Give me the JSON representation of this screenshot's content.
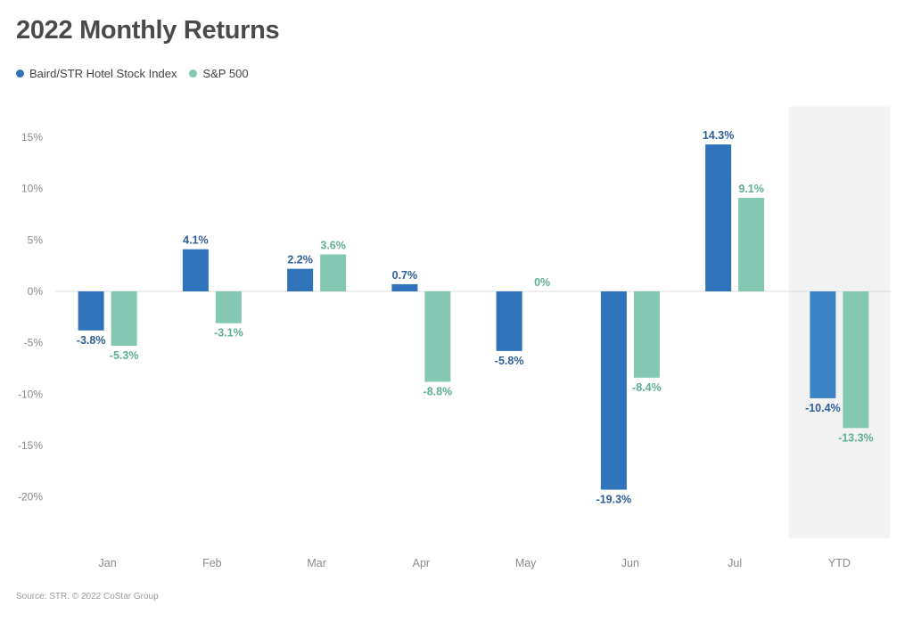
{
  "chart_data": {
    "type": "bar",
    "title": "2022 Monthly Returns",
    "categories": [
      "Jan",
      "Feb",
      "Mar",
      "Apr",
      "May",
      "Jun",
      "Jul",
      "YTD"
    ],
    "series": [
      {
        "name": "Baird/STR Hotel Stock Index",
        "color": "#2f73bb",
        "values": [
          -3.8,
          4.1,
          2.2,
          0.7,
          -5.8,
          -19.3,
          14.3,
          -10.4
        ],
        "labels": [
          "-3.8%",
          "4.1%",
          "2.2%",
          "0.7%",
          "-5.8%",
          "-19.3%",
          "14.3%",
          "-10.4%"
        ]
      },
      {
        "name": "S&P 500",
        "color": "#84c8b4",
        "values": [
          -5.3,
          -3.1,
          3.6,
          -8.8,
          0,
          -8.4,
          9.1,
          -13.3
        ],
        "labels": [
          "-5.3%",
          "-3.1%",
          "3.6%",
          "-8.8%",
          "0%",
          "-8.4%",
          "9.1%",
          "-13.3%"
        ]
      }
    ],
    "yticks": [
      15,
      10,
      5,
      0,
      -5,
      -10,
      -15,
      -20
    ],
    "ytick_labels": [
      "15%",
      "10%",
      "5%",
      "0%",
      "-5%",
      "-10%",
      "-15%",
      "-20%"
    ],
    "ylim": [
      -24,
      18
    ],
    "highlight_category": "YTD",
    "legend_position": "top-left",
    "source": "Source: STR. © 2022 CoStar Group"
  }
}
